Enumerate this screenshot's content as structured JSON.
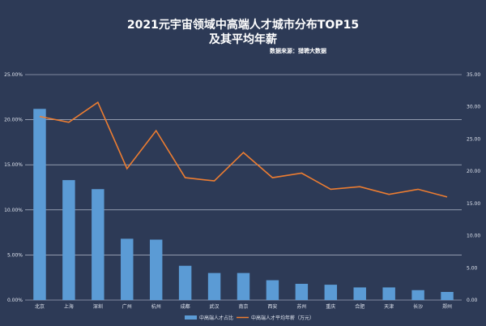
{
  "chart_data": {
    "type": "bar",
    "title": "2021元宇宙领域中高端人才城市分布TOP15",
    "subtitle": "及其平均年薪",
    "source": "数据来源：猎聘大数据",
    "categories": [
      "北京",
      "上海",
      "深圳",
      "广州",
      "杭州",
      "成都",
      "武汉",
      "南京",
      "西安",
      "苏州",
      "重庆",
      "合肥",
      "天津",
      "长沙",
      "郑州"
    ],
    "series": [
      {
        "name": "中高端人才占比",
        "type": "bar",
        "axis": "left",
        "color": "#5b9bd5",
        "values": [
          21.2,
          13.3,
          12.3,
          6.8,
          6.7,
          3.8,
          3.0,
          3.0,
          2.2,
          1.8,
          1.7,
          1.4,
          1.4,
          1.1,
          0.9
        ]
      },
      {
        "name": "中高端人才平均年薪（万元）",
        "type": "line",
        "axis": "right",
        "color": "#ed7d31",
        "values": [
          28.5,
          27.6,
          30.7,
          20.4,
          26.3,
          19.0,
          18.5,
          22.9,
          19.0,
          19.7,
          17.2,
          17.6,
          16.4,
          17.2,
          16.0
        ]
      }
    ],
    "y_left": {
      "ylim": [
        0,
        25
      ],
      "ticks": [
        "0.00%",
        "5.00%",
        "10.00%",
        "15.00%",
        "20.00%",
        "25.00%"
      ]
    },
    "y_right": {
      "ylim": [
        0,
        35
      ],
      "ticks": [
        "0.00",
        "5.00",
        "10.00",
        "15.00",
        "20.00",
        "25.00",
        "30.00",
        "35.00"
      ]
    },
    "grid": true,
    "legend_position": "bottom",
    "colors": {
      "background": "#2d3a56",
      "grid": "#cfd6e3",
      "text": "#dfe4ee"
    }
  }
}
